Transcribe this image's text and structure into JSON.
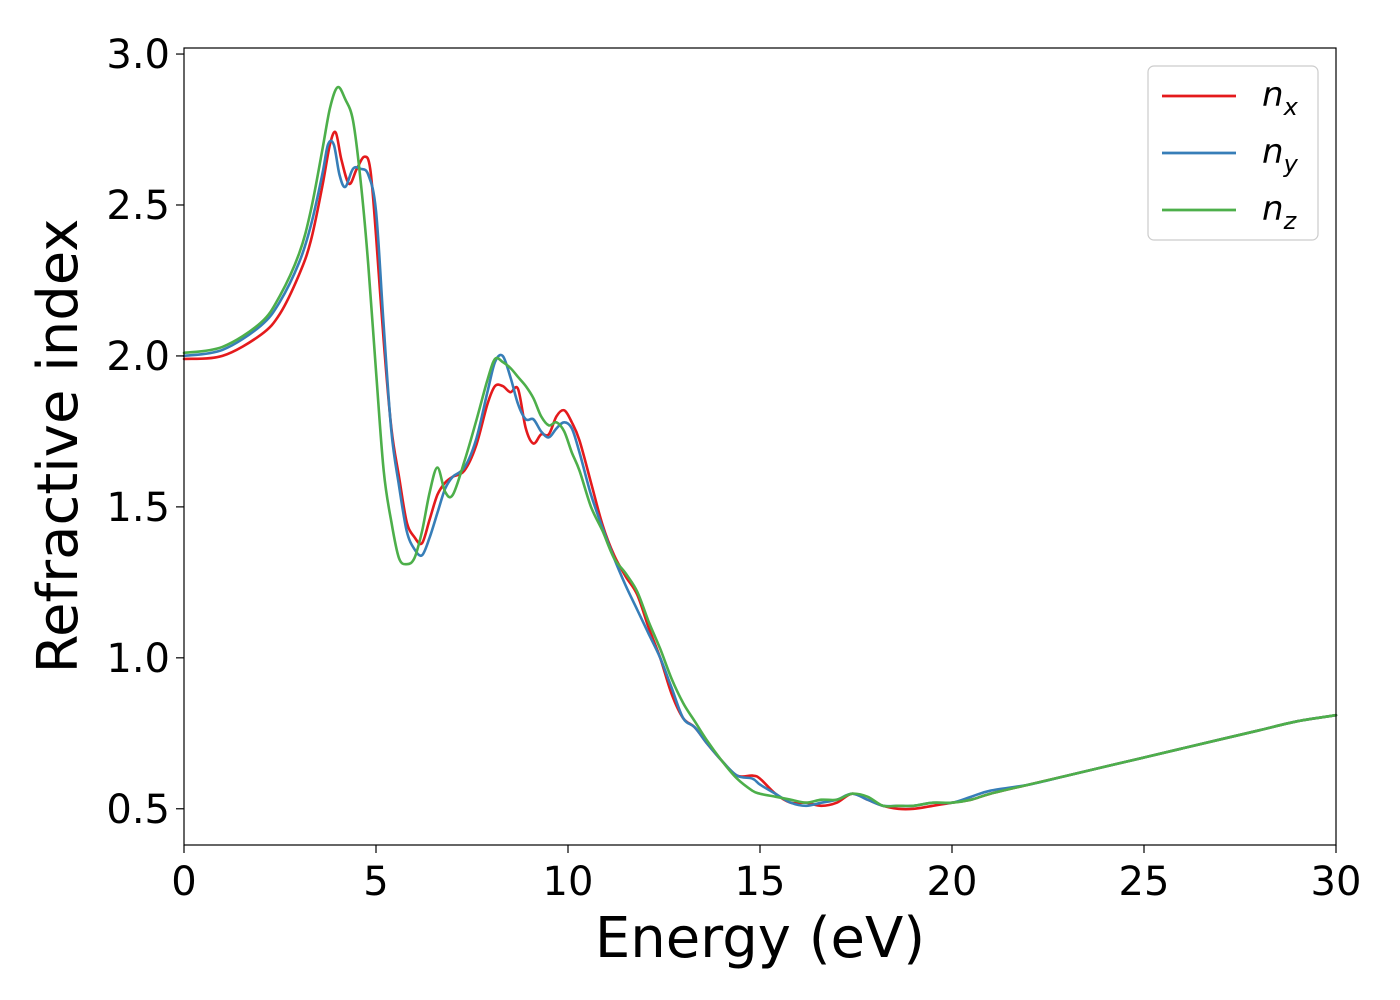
{
  "chart_data": {
    "type": "line",
    "xlabel": "Energy (eV)",
    "ylabel": "Refractive index",
    "xlim": [
      0,
      30
    ],
    "ylim": [
      0.38,
      3.02
    ],
    "xticks": [
      0,
      5,
      10,
      15,
      20,
      25,
      30
    ],
    "xtick_labels": [
      "0",
      "5",
      "10",
      "15",
      "20",
      "25",
      "30"
    ],
    "yticks": [
      0.5,
      1.0,
      1.5,
      2.0,
      2.5,
      3.0
    ],
    "ytick_labels": [
      "0.5",
      "1.0",
      "1.5",
      "2.0",
      "2.5",
      "3.0"
    ],
    "grid": false,
    "legend_position": "top-right",
    "series": [
      {
        "name": "n",
        "subscript": "x",
        "color": "#e41a1c",
        "x": [
          0,
          1,
          2,
          2.5,
          3,
          3.3,
          3.6,
          3.8,
          3.95,
          4.1,
          4.3,
          4.5,
          4.7,
          4.85,
          5.0,
          5.2,
          5.4,
          5.6,
          5.8,
          6.0,
          6.2,
          6.4,
          6.6,
          6.8,
          7.0,
          7.3,
          7.6,
          7.9,
          8.1,
          8.3,
          8.5,
          8.7,
          8.9,
          9.1,
          9.3,
          9.5,
          9.7,
          9.9,
          10.1,
          10.3,
          10.6,
          10.9,
          11.2,
          11.5,
          11.8,
          12.1,
          12.4,
          12.7,
          13.0,
          13.3,
          13.6,
          14.0,
          14.4,
          14.8,
          15.0,
          15.4,
          15.8,
          16.2,
          16.6,
          17.0,
          17.4,
          17.8,
          18.2,
          18.6,
          19.0,
          19.5,
          20.0,
          20.5,
          21.0,
          22.0,
          23.0,
          24.0,
          25.0,
          26.0,
          27.0,
          28.0,
          29.0,
          30.0
        ],
        "y": [
          1.99,
          2.0,
          2.07,
          2.14,
          2.27,
          2.38,
          2.56,
          2.7,
          2.74,
          2.65,
          2.57,
          2.62,
          2.66,
          2.62,
          2.4,
          2.05,
          1.76,
          1.6,
          1.45,
          1.4,
          1.38,
          1.46,
          1.54,
          1.58,
          1.6,
          1.62,
          1.7,
          1.84,
          1.9,
          1.9,
          1.88,
          1.89,
          1.76,
          1.71,
          1.74,
          1.74,
          1.8,
          1.82,
          1.78,
          1.72,
          1.58,
          1.44,
          1.34,
          1.27,
          1.21,
          1.1,
          1.0,
          0.88,
          0.8,
          0.77,
          0.72,
          0.66,
          0.61,
          0.61,
          0.6,
          0.55,
          0.52,
          0.52,
          0.51,
          0.52,
          0.55,
          0.53,
          0.51,
          0.5,
          0.5,
          0.51,
          0.52,
          0.53,
          0.55,
          0.58,
          0.61,
          0.64,
          0.67,
          0.7,
          0.73,
          0.76,
          0.79,
          0.81
        ]
      },
      {
        "name": "n",
        "subscript": "y",
        "color": "#377eb8",
        "x": [
          0,
          1,
          2,
          2.5,
          3,
          3.3,
          3.6,
          3.75,
          3.9,
          4.05,
          4.2,
          4.4,
          4.6,
          4.8,
          5.0,
          5.2,
          5.4,
          5.6,
          5.8,
          6.0,
          6.2,
          6.4,
          6.6,
          6.8,
          7.0,
          7.3,
          7.6,
          7.9,
          8.1,
          8.3,
          8.5,
          8.7,
          8.9,
          9.1,
          9.3,
          9.5,
          9.7,
          9.9,
          10.1,
          10.3,
          10.6,
          10.9,
          11.2,
          11.5,
          11.8,
          12.1,
          12.4,
          12.7,
          13.0,
          13.3,
          13.6,
          14.0,
          14.4,
          14.8,
          15.0,
          15.4,
          15.8,
          16.2,
          16.6,
          17.0,
          17.4,
          17.8,
          18.2,
          18.6,
          19.0,
          19.5,
          20.0,
          20.5,
          21.0,
          22.0,
          23.0,
          24.0,
          25.0,
          26.0,
          27.0,
          28.0,
          29.0,
          30.0
        ],
        "y": [
          2.0,
          2.02,
          2.1,
          2.18,
          2.31,
          2.43,
          2.6,
          2.7,
          2.7,
          2.6,
          2.56,
          2.62,
          2.62,
          2.6,
          2.48,
          2.1,
          1.75,
          1.57,
          1.42,
          1.36,
          1.34,
          1.4,
          1.48,
          1.56,
          1.6,
          1.63,
          1.72,
          1.88,
          1.98,
          2.0,
          1.93,
          1.84,
          1.79,
          1.79,
          1.75,
          1.73,
          1.76,
          1.78,
          1.76,
          1.68,
          1.54,
          1.43,
          1.33,
          1.24,
          1.16,
          1.08,
          1.0,
          0.9,
          0.8,
          0.77,
          0.72,
          0.66,
          0.61,
          0.6,
          0.58,
          0.55,
          0.52,
          0.51,
          0.52,
          0.53,
          0.55,
          0.53,
          0.51,
          0.51,
          0.51,
          0.52,
          0.52,
          0.54,
          0.56,
          0.58,
          0.61,
          0.64,
          0.67,
          0.7,
          0.73,
          0.76,
          0.79,
          0.81
        ]
      },
      {
        "name": "n",
        "subscript": "z",
        "color": "#4daf4a",
        "x": [
          0,
          1,
          2,
          2.5,
          3,
          3.3,
          3.6,
          3.8,
          4.0,
          4.2,
          4.4,
          4.6,
          4.8,
          5.0,
          5.2,
          5.4,
          5.6,
          5.8,
          6.0,
          6.2,
          6.4,
          6.6,
          6.8,
          7.0,
          7.3,
          7.6,
          7.9,
          8.1,
          8.3,
          8.5,
          8.7,
          8.9,
          9.1,
          9.3,
          9.5,
          9.7,
          9.9,
          10.1,
          10.3,
          10.6,
          10.9,
          11.2,
          11.5,
          11.8,
          12.1,
          12.4,
          12.7,
          13.0,
          13.3,
          13.6,
          14.0,
          14.4,
          14.8,
          15.0,
          15.4,
          15.8,
          16.2,
          16.6,
          17.0,
          17.4,
          17.8,
          18.2,
          18.6,
          19.0,
          19.5,
          20.0,
          20.5,
          21.0,
          22.0,
          23.0,
          24.0,
          25.0,
          26.0,
          27.0,
          28.0,
          29.0,
          30.0
        ],
        "y": [
          2.01,
          2.03,
          2.11,
          2.2,
          2.34,
          2.48,
          2.68,
          2.82,
          2.89,
          2.85,
          2.78,
          2.58,
          2.3,
          1.95,
          1.62,
          1.45,
          1.33,
          1.31,
          1.33,
          1.42,
          1.55,
          1.63,
          1.55,
          1.54,
          1.65,
          1.78,
          1.92,
          1.99,
          1.98,
          1.96,
          1.93,
          1.9,
          1.86,
          1.8,
          1.77,
          1.78,
          1.75,
          1.68,
          1.62,
          1.5,
          1.42,
          1.33,
          1.28,
          1.22,
          1.12,
          1.03,
          0.93,
          0.85,
          0.79,
          0.73,
          0.66,
          0.6,
          0.56,
          0.55,
          0.54,
          0.53,
          0.52,
          0.53,
          0.53,
          0.55,
          0.54,
          0.51,
          0.51,
          0.51,
          0.52,
          0.52,
          0.53,
          0.55,
          0.58,
          0.61,
          0.64,
          0.67,
          0.7,
          0.73,
          0.76,
          0.79,
          0.81
        ]
      }
    ]
  }
}
